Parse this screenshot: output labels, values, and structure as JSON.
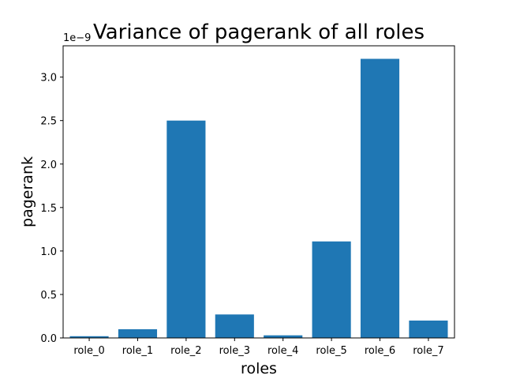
{
  "chart_data": {
    "type": "bar",
    "title": "Variance of pagerank of all roles",
    "xlabel": "roles",
    "ylabel": "pagerank",
    "y_offset_text": "1e−9",
    "categories": [
      "role_0",
      "role_1",
      "role_2",
      "role_3",
      "role_4",
      "role_5",
      "role_6",
      "role_7"
    ],
    "values": [
      0.02,
      0.1,
      2.5,
      0.27,
      0.03,
      1.11,
      3.21,
      0.2
    ],
    "ylim": [
      0,
      3.36
    ],
    "yticks": [
      "0.0",
      "0.5",
      "1.0",
      "1.5",
      "2.0",
      "2.5",
      "3.0"
    ],
    "bar_color": "#1f77b4",
    "grid": false
  }
}
